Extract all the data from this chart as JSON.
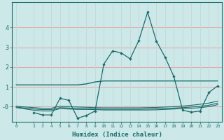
{
  "line1_x": [
    0,
    2,
    3,
    4,
    5,
    6,
    7,
    8,
    9,
    10,
    11,
    12,
    13,
    14,
    15,
    16,
    17,
    18,
    19,
    20,
    21,
    22,
    23
  ],
  "line1_y": [
    1.1,
    1.1,
    1.1,
    1.1,
    1.1,
    1.1,
    1.1,
    1.15,
    1.25,
    1.3,
    1.3,
    1.3,
    1.3,
    1.3,
    1.3,
    1.3,
    1.3,
    1.3,
    1.3,
    1.3,
    1.3,
    1.3,
    1.3
  ],
  "line2_x": [
    2,
    3,
    4,
    5,
    6,
    7,
    8,
    9,
    10,
    11,
    12,
    13,
    14,
    15,
    16,
    17,
    18,
    19,
    20,
    21,
    22,
    23
  ],
  "line2_y": [
    -0.3,
    -0.42,
    -0.42,
    0.42,
    0.32,
    -0.58,
    -0.45,
    -0.22,
    2.15,
    2.82,
    2.72,
    2.42,
    3.35,
    4.78,
    3.32,
    2.5,
    1.52,
    -0.18,
    -0.28,
    -0.22,
    0.72,
    1.05
  ],
  "line3_x": [
    0,
    2,
    3,
    4,
    5,
    6,
    7,
    8,
    9,
    10,
    11,
    12,
    13,
    14,
    15,
    16,
    17,
    18,
    19,
    20,
    21,
    22,
    23
  ],
  "line3_y": [
    -0.05,
    -0.18,
    -0.22,
    -0.22,
    -0.1,
    -0.12,
    -0.14,
    -0.14,
    -0.15,
    -0.17,
    -0.17,
    -0.17,
    -0.17,
    -0.17,
    -0.17,
    -0.16,
    -0.14,
    -0.12,
    -0.1,
    -0.08,
    -0.05,
    -0.0,
    0.1
  ],
  "line4_x": [
    0,
    2,
    3,
    4,
    5,
    6,
    7,
    8,
    9,
    10,
    11,
    12,
    13,
    14,
    15,
    16,
    17,
    18,
    19,
    20,
    21,
    22,
    23
  ],
  "line4_y": [
    -0.02,
    -0.12,
    -0.15,
    -0.15,
    -0.05,
    -0.07,
    -0.09,
    -0.1,
    -0.12,
    -0.13,
    -0.13,
    -0.13,
    -0.13,
    -0.13,
    -0.12,
    -0.11,
    -0.09,
    -0.07,
    -0.05,
    -0.02,
    0.02,
    0.07,
    0.18
  ],
  "line5_x": [
    0,
    2,
    3,
    4,
    5,
    6,
    7,
    8,
    9,
    10,
    11,
    12,
    13,
    14,
    15,
    16,
    17,
    18,
    19,
    20,
    21,
    22,
    23
  ],
  "line5_y": [
    0.02,
    -0.05,
    -0.08,
    -0.08,
    0.02,
    -0.0,
    -0.02,
    -0.03,
    -0.05,
    -0.06,
    -0.06,
    -0.06,
    -0.06,
    -0.06,
    -0.05,
    -0.04,
    -0.02,
    0.0,
    0.03,
    0.07,
    0.12,
    0.18,
    0.28
  ],
  "bg_color": "#cce8e8",
  "line_color": "#1a6b6b",
  "grid_color_h": "#e8a0a0",
  "grid_color_v": "#c8d8d8",
  "xlabel": "Humidex (Indice chaleur)",
  "xticks": [
    0,
    2,
    3,
    4,
    5,
    6,
    7,
    8,
    9,
    10,
    11,
    12,
    13,
    14,
    15,
    16,
    17,
    18,
    19,
    20,
    21,
    22,
    23
  ],
  "yticks": [
    -0.0,
    1.0,
    2.0,
    3.0,
    4.0
  ],
  "ytick_labels": [
    "-0",
    "1",
    "2",
    "3",
    "4"
  ],
  "ylim": [
    -0.75,
    5.3
  ],
  "xlim": [
    -0.5,
    23.5
  ]
}
